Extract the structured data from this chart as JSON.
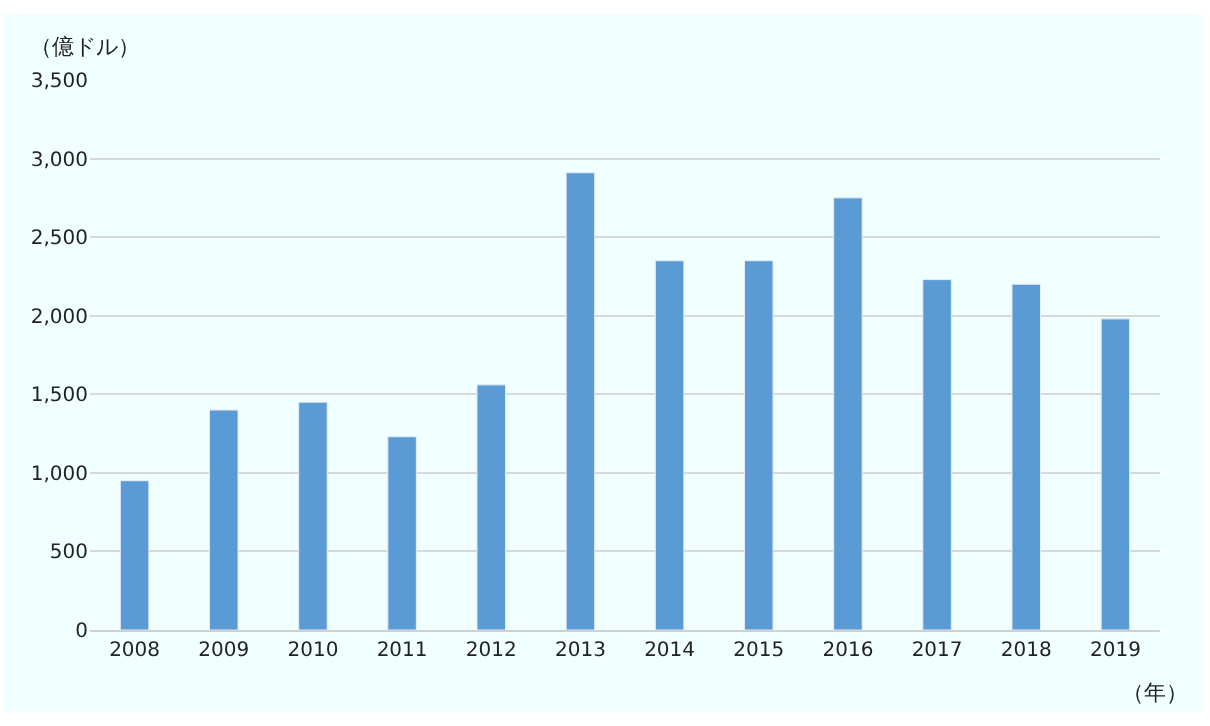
{
  "chart_data": {
    "type": "bar",
    "ylabel": "（億ドル）",
    "xlabel": "（年）",
    "categories": [
      "2008",
      "2009",
      "2010",
      "2011",
      "2012",
      "2013",
      "2014",
      "2015",
      "2016",
      "2017",
      "2018",
      "2019"
    ],
    "values": [
      950,
      1400,
      1450,
      1230,
      1560,
      2910,
      2350,
      2350,
      2750,
      2230,
      2200,
      1980
    ],
    "color": "#5b9bd5",
    "ylim": [
      0,
      3500
    ],
    "yticks": [
      0,
      {
        "value": 500,
        "label": "500"
      },
      {
        "value": 1000,
        "label": "1,000"
      },
      {
        "value": 1500,
        "label": "1,500"
      },
      {
        "value": 2000,
        "label": "2,000"
      },
      {
        "value": 2500,
        "label": "2,500"
      },
      {
        "value": 3000,
        "label": "3,000"
      },
      {
        "value": 3500,
        "label": "3,500"
      }
    ],
    "grid": "y"
  }
}
